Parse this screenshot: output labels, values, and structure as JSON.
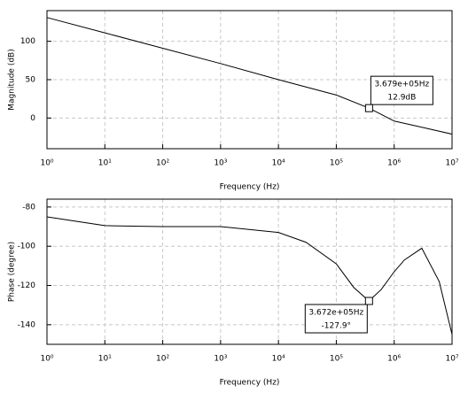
{
  "chart_data": [
    {
      "type": "line",
      "xlabel": "Frequency (Hz)",
      "ylabel": "Magnitude (dB)",
      "log_x": true,
      "grid": true,
      "x": [
        1,
        10,
        100,
        1000,
        10000,
        100000,
        367900,
        1000000,
        3000000,
        10000000
      ],
      "series": [
        {
          "name": "Magnitude",
          "color": "#000000",
          "values": [
            131,
            111,
            91,
            71,
            50,
            30,
            12.9,
            -4,
            -12,
            -21
          ]
        }
      ],
      "xlim": [
        1,
        10000000
      ],
      "xticks": [
        {
          "value": 1,
          "label": "10⁰"
        },
        {
          "value": 10,
          "label": "10¹"
        },
        {
          "value": 100,
          "label": "10²"
        },
        {
          "value": 1000,
          "label": "10³"
        },
        {
          "value": 10000,
          "label": "10⁴"
        },
        {
          "value": 100000,
          "label": "10⁵"
        },
        {
          "value": 1000000,
          "label": "10⁶"
        },
        {
          "value": 10000000,
          "label": "10⁷"
        }
      ],
      "ylim": [
        -40,
        140
      ],
      "yticks": [
        0,
        50,
        100
      ],
      "annotations": [
        {
          "x": 367900,
          "y": 12.9,
          "lines": [
            "3.679e+05Hz",
            "12.9dB"
          ]
        }
      ]
    },
    {
      "type": "line",
      "xlabel": "Frequency (Hz)",
      "ylabel": "Phase (degree)",
      "log_x": true,
      "grid": true,
      "x": [
        1,
        10,
        100,
        1000,
        10000,
        30000,
        100000,
        200000,
        367200,
        600000,
        1000000,
        1500000,
        3000000,
        6000000,
        10000000
      ],
      "series": [
        {
          "name": "Phase",
          "color": "#000000",
          "values": [
            -85,
            -89.5,
            -90,
            -90,
            -93,
            -98,
            -109,
            -121,
            -127.9,
            -122,
            -113,
            -107,
            -101,
            -118,
            -145
          ]
        }
      ],
      "xlim": [
        1,
        10000000
      ],
      "xticks": [
        {
          "value": 1,
          "label": "10⁰"
        },
        {
          "value": 10,
          "label": "10¹"
        },
        {
          "value": 100,
          "label": "10²"
        },
        {
          "value": 1000,
          "label": "10³"
        },
        {
          "value": 10000,
          "label": "10⁴"
        },
        {
          "value": 100000,
          "label": "10⁵"
        },
        {
          "value": 1000000,
          "label": "10⁶"
        },
        {
          "value": 10000000,
          "label": "10⁷"
        }
      ],
      "ylim": [
        -150,
        -76
      ],
      "yticks": [
        -140,
        -120,
        -100,
        -80
      ],
      "annotations": [
        {
          "x": 367200,
          "y": -127.9,
          "lines": [
            "3.672e+05Hz",
            "-127.9°"
          ]
        }
      ]
    }
  ]
}
